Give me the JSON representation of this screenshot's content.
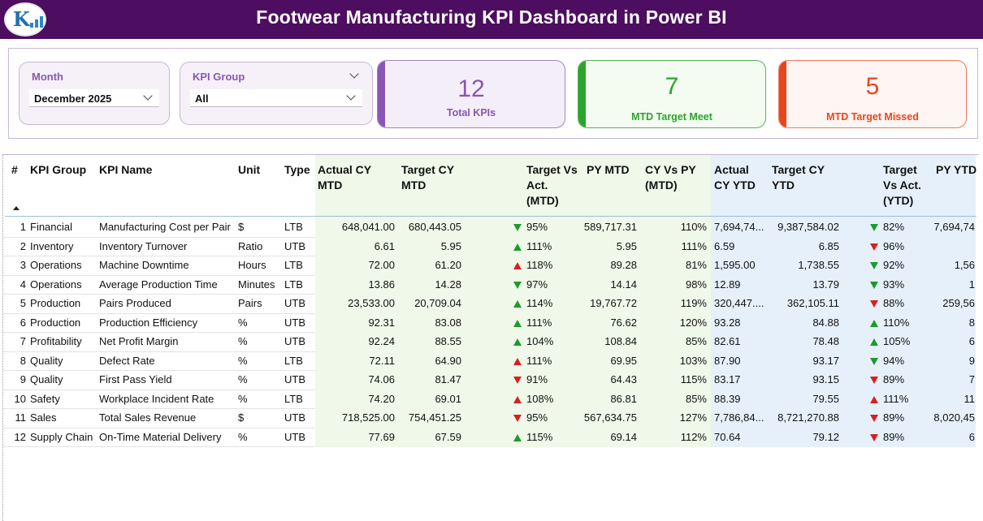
{
  "header": {
    "title": "Footwear Manufacturing KPI Dashboard in Power BI",
    "logo_text": "K"
  },
  "slicers": {
    "month": {
      "label": "Month",
      "value": "December 2025"
    },
    "kpi_group": {
      "label": "KPI Group",
      "value": "All"
    }
  },
  "cards": [
    {
      "value": "12",
      "label": "Total KPIs",
      "accent": "#8a55b3"
    },
    {
      "value": "7",
      "label": "MTD Target Meet",
      "accent": "#2aa52a"
    },
    {
      "value": "5",
      "label": "MTD Target Missed",
      "accent": "#e8461e"
    }
  ],
  "colors": {
    "header_bg": "#4d0d60",
    "mtd_bg": "#eff8e9",
    "ytd_bg": "#e6f0fb",
    "up_green": "#1f9a2b",
    "up_red": "#d62020",
    "down_green": "#1f9a2b",
    "down_red": "#d62020"
  },
  "table": {
    "columns": {
      "num": "#",
      "kpi_group": "KPI Group",
      "kpi_name": "KPI Name",
      "unit": "Unit",
      "type": "Type",
      "actual_cy_mtd": [
        "Actual CY",
        "MTD"
      ],
      "target_cy_mtd": [
        "Target CY",
        "MTD"
      ],
      "target_vs_act_mtd": [
        "Target Vs",
        "Act.",
        "(MTD)"
      ],
      "py_mtd": "PY MTD",
      "cy_vs_py_mtd": [
        "CY Vs PY",
        "(MTD)"
      ],
      "actual_cy_ytd": [
        "Actual",
        "CY YTD"
      ],
      "target_cy_ytd": [
        "Target CY",
        "YTD"
      ],
      "target_vs_act_ytd": [
        "Target",
        "Vs Act.",
        "(YTD)"
      ],
      "py_ytd": "PY YTD"
    },
    "rows": [
      {
        "num": "1",
        "group": "Financial",
        "name": "Manufacturing Cost per Pair",
        "unit": "$",
        "type": "LTB",
        "act_mtd": "648,041.00",
        "tgt_mtd": "680,443.05",
        "mtd_icon": "down-green",
        "mtd_pct": "95%",
        "py_mtd": "589,717.31",
        "cy_py_mtd": "110%",
        "act_ytd": "7,694,74...",
        "tgt_ytd": "9,387,584.02",
        "ytd_icon": "down-green",
        "ytd_pct": "82%",
        "py_ytd": "7,694,74"
      },
      {
        "num": "2",
        "group": "Inventory",
        "name": "Inventory Turnover",
        "unit": "Ratio",
        "type": "UTB",
        "act_mtd": "6.61",
        "tgt_mtd": "5.95",
        "mtd_icon": "up-green",
        "mtd_pct": "111%",
        "py_mtd": "5.95",
        "cy_py_mtd": "111%",
        "act_ytd": "6.59",
        "tgt_ytd": "6.85",
        "ytd_icon": "down-red",
        "ytd_pct": "96%",
        "py_ytd": ""
      },
      {
        "num": "3",
        "group": "Operations",
        "name": "Machine Downtime",
        "unit": "Hours",
        "type": "LTB",
        "act_mtd": "72.00",
        "tgt_mtd": "61.20",
        "mtd_icon": "up-red",
        "mtd_pct": "118%",
        "py_mtd": "89.28",
        "cy_py_mtd": "81%",
        "act_ytd": "1,595.00",
        "tgt_ytd": "1,738.55",
        "ytd_icon": "down-green",
        "ytd_pct": "92%",
        "py_ytd": "1,56"
      },
      {
        "num": "4",
        "group": "Operations",
        "name": "Average Production Time",
        "unit": "Minutes",
        "type": "LTB",
        "act_mtd": "13.86",
        "tgt_mtd": "14.28",
        "mtd_icon": "down-green",
        "mtd_pct": "97%",
        "py_mtd": "14.14",
        "cy_py_mtd": "98%",
        "act_ytd": "12.89",
        "tgt_ytd": "13.79",
        "ytd_icon": "down-green",
        "ytd_pct": "93%",
        "py_ytd": "1"
      },
      {
        "num": "5",
        "group": "Production",
        "name": "Pairs Produced",
        "unit": "Pairs",
        "type": "UTB",
        "act_mtd": "23,533.00",
        "tgt_mtd": "20,709.04",
        "mtd_icon": "up-green",
        "mtd_pct": "114%",
        "py_mtd": "19,767.72",
        "cy_py_mtd": "119%",
        "act_ytd": "320,447....",
        "tgt_ytd": "362,105.11",
        "ytd_icon": "down-red",
        "ytd_pct": "88%",
        "py_ytd": "259,56"
      },
      {
        "num": "6",
        "group": "Production",
        "name": "Production Efficiency",
        "unit": "%",
        "type": "UTB",
        "act_mtd": "92.31",
        "tgt_mtd": "83.08",
        "mtd_icon": "up-green",
        "mtd_pct": "111%",
        "py_mtd": "76.62",
        "cy_py_mtd": "120%",
        "act_ytd": "93.28",
        "tgt_ytd": "84.88",
        "ytd_icon": "up-green",
        "ytd_pct": "110%",
        "py_ytd": "8"
      },
      {
        "num": "7",
        "group": "Profitability",
        "name": "Net Profit Margin",
        "unit": "%",
        "type": "UTB",
        "act_mtd": "92.24",
        "tgt_mtd": "88.55",
        "mtd_icon": "up-green",
        "mtd_pct": "104%",
        "py_mtd": "108.84",
        "cy_py_mtd": "85%",
        "act_ytd": "82.61",
        "tgt_ytd": "78.48",
        "ytd_icon": "up-green",
        "ytd_pct": "105%",
        "py_ytd": "6"
      },
      {
        "num": "8",
        "group": "Quality",
        "name": "Defect Rate",
        "unit": "%",
        "type": "LTB",
        "act_mtd": "72.11",
        "tgt_mtd": "64.90",
        "mtd_icon": "up-red",
        "mtd_pct": "111%",
        "py_mtd": "69.95",
        "cy_py_mtd": "103%",
        "act_ytd": "87.90",
        "tgt_ytd": "93.17",
        "ytd_icon": "down-green",
        "ytd_pct": "94%",
        "py_ytd": "9"
      },
      {
        "num": "9",
        "group": "Quality",
        "name": "First Pass Yield",
        "unit": "%",
        "type": "UTB",
        "act_mtd": "74.06",
        "tgt_mtd": "81.47",
        "mtd_icon": "down-red",
        "mtd_pct": "91%",
        "py_mtd": "64.43",
        "cy_py_mtd": "115%",
        "act_ytd": "83.17",
        "tgt_ytd": "93.15",
        "ytd_icon": "down-red",
        "ytd_pct": "89%",
        "py_ytd": "7"
      },
      {
        "num": "10",
        "group": "Safety",
        "name": "Workplace Incident Rate",
        "unit": "%",
        "type": "LTB",
        "act_mtd": "74.20",
        "tgt_mtd": "69.01",
        "mtd_icon": "up-red",
        "mtd_pct": "108%",
        "py_mtd": "86.81",
        "cy_py_mtd": "85%",
        "act_ytd": "88.39",
        "tgt_ytd": "79.55",
        "ytd_icon": "up-red",
        "ytd_pct": "111%",
        "py_ytd": "11"
      },
      {
        "num": "11",
        "group": "Sales",
        "name": "Total Sales Revenue",
        "unit": "$",
        "type": "UTB",
        "act_mtd": "718,525.00",
        "tgt_mtd": "754,451.25",
        "mtd_icon": "down-red",
        "mtd_pct": "95%",
        "py_mtd": "567,634.75",
        "cy_py_mtd": "127%",
        "act_ytd": "7,786,84...",
        "tgt_ytd": "8,721,270.88",
        "ytd_icon": "down-red",
        "ytd_pct": "89%",
        "py_ytd": "8,020,45"
      },
      {
        "num": "12",
        "group": "Supply Chain",
        "name": "On-Time Material Delivery",
        "unit": "%",
        "type": "UTB",
        "act_mtd": "77.69",
        "tgt_mtd": "67.59",
        "mtd_icon": "up-green",
        "mtd_pct": "115%",
        "py_mtd": "69.14",
        "cy_py_mtd": "112%",
        "act_ytd": "70.64",
        "tgt_ytd": "79.12",
        "ytd_icon": "down-red",
        "ytd_pct": "89%",
        "py_ytd": "6"
      }
    ]
  }
}
